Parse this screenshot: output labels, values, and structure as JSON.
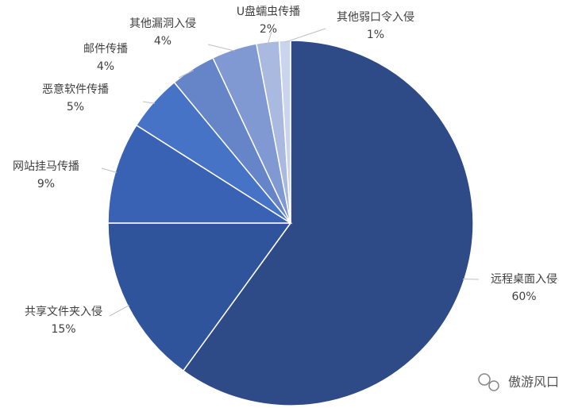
{
  "chart_data": {
    "type": "pie",
    "categories": [
      "远程桌面入侵",
      "共享文件夹入侵",
      "网站挂马传播",
      "恶意软件传播",
      "邮件传播",
      "其他漏洞入侵",
      "U盘蠕虫传播",
      "其他弱口令入侵"
    ],
    "values": [
      60,
      15,
      9,
      5,
      4,
      4,
      2,
      1
    ],
    "value_labels": [
      "60%",
      "15%",
      "9%",
      "5%",
      "4%",
      "4%",
      "2%",
      "1%"
    ],
    "colors": [
      "#2e4b87",
      "#30549c",
      "#3a62b4",
      "#4673c6",
      "#6685c9",
      "#8099d3",
      "#aab9df",
      "#cad4ec"
    ]
  },
  "watermark": "傲游风口"
}
